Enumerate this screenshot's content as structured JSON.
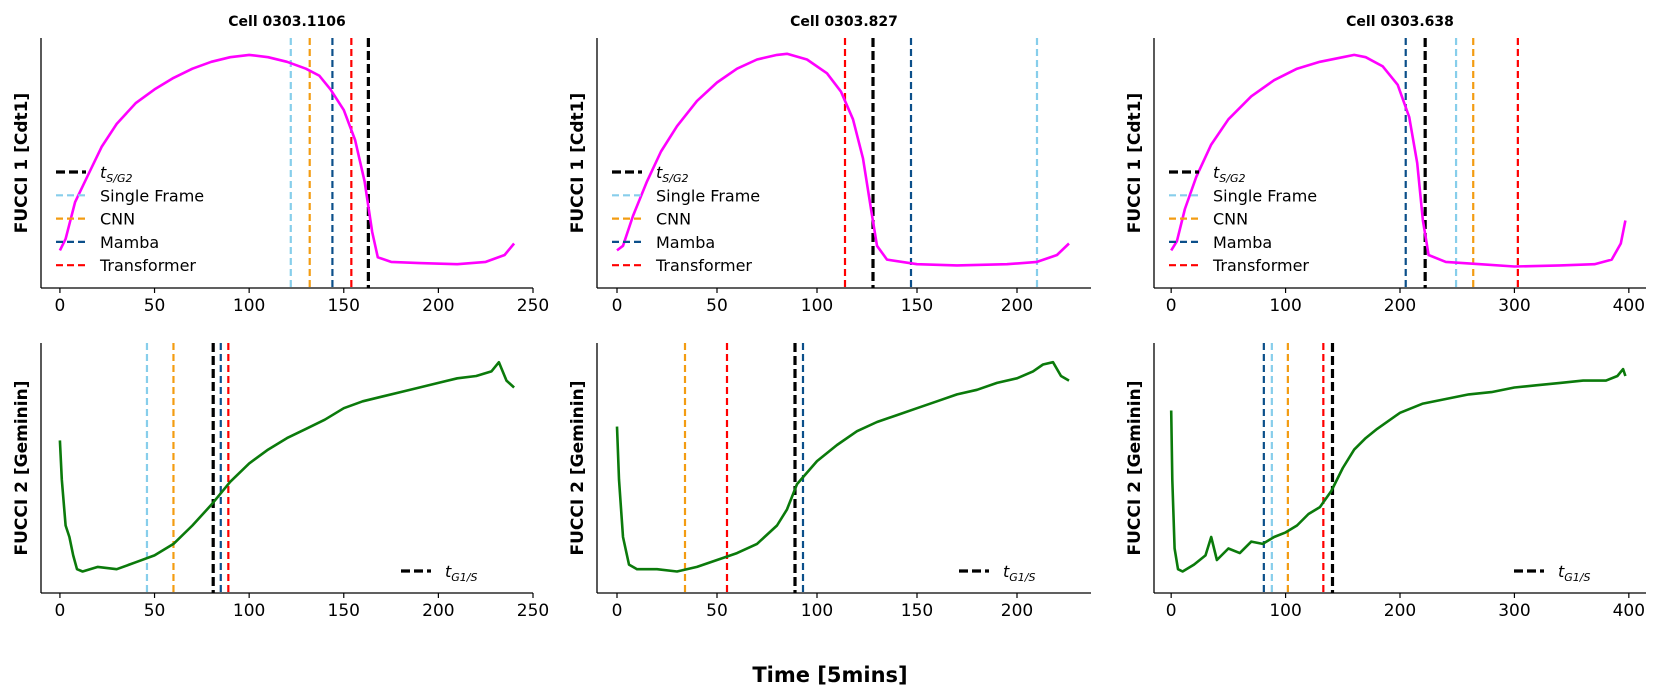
{
  "figure": {
    "xlabel": "Time [5mins]",
    "colors": {
      "t_event": "#000000",
      "single_frame": "#87ceeb",
      "cnn": "#f39c12",
      "mamba": "#0b4f8a",
      "transformer": "#ff0000",
      "fucci1": "#ff00ff",
      "fucci2": "#0b7a0b"
    }
  },
  "chart_data": [
    {
      "type": "line",
      "row": 0,
      "col": 0,
      "title": "Cell 0303.1106",
      "ylabel": "FUCCI 1 [Cdt1]",
      "xlim": [
        -10,
        250
      ],
      "xticks": [
        0,
        50,
        100,
        150,
        200,
        250
      ],
      "ylim": [
        0,
        1
      ],
      "yticks_shown": false,
      "grid": false,
      "series": [
        {
          "color": "#ff00ff",
          "points": [
            [
              0,
              0.12
            ],
            [
              3,
              0.17
            ],
            [
              8,
              0.33
            ],
            [
              15,
              0.45
            ],
            [
              22,
              0.57
            ],
            [
              30,
              0.67
            ],
            [
              40,
              0.76
            ],
            [
              50,
              0.82
            ],
            [
              60,
              0.87
            ],
            [
              70,
              0.91
            ],
            [
              80,
              0.94
            ],
            [
              90,
              0.96
            ],
            [
              100,
              0.97
            ],
            [
              110,
              0.96
            ],
            [
              120,
              0.94
            ],
            [
              130,
              0.91
            ],
            [
              137,
              0.88
            ],
            [
              143,
              0.82
            ],
            [
              150,
              0.73
            ],
            [
              156,
              0.6
            ],
            [
              161,
              0.42
            ],
            [
              165,
              0.2
            ],
            [
              168,
              0.09
            ],
            [
              175,
              0.07
            ],
            [
              190,
              0.065
            ],
            [
              210,
              0.06
            ],
            [
              225,
              0.07
            ],
            [
              235,
              0.1
            ],
            [
              240,
              0.15
            ]
          ]
        }
      ],
      "vlines": [
        {
          "name": "t_event",
          "x": 163
        },
        {
          "name": "single_frame",
          "x": 122
        },
        {
          "name": "cnn",
          "x": 132
        },
        {
          "name": "mamba",
          "x": 144
        },
        {
          "name": "transformer",
          "x": 154
        }
      ],
      "legend": {
        "position": "center-left",
        "entries": [
          {
            "key": "t_event",
            "label": "t",
            "sub": "S/G2"
          },
          {
            "key": "single_frame",
            "label": "Single Frame"
          },
          {
            "key": "cnn",
            "label": "CNN"
          },
          {
            "key": "mamba",
            "label": "Mamba"
          },
          {
            "key": "transformer",
            "label": "Transformer"
          }
        ]
      }
    },
    {
      "type": "line",
      "row": 0,
      "col": 1,
      "title": "Cell 0303.827",
      "ylabel": "FUCCI 1 [Cdt1]",
      "xlim": [
        -10,
        237
      ],
      "xticks": [
        0,
        50,
        100,
        150,
        200
      ],
      "ylim": [
        0,
        1
      ],
      "yticks_shown": false,
      "grid": false,
      "series": [
        {
          "color": "#ff00ff",
          "points": [
            [
              0,
              0.12
            ],
            [
              3,
              0.14
            ],
            [
              8,
              0.27
            ],
            [
              15,
              0.42
            ],
            [
              22,
              0.55
            ],
            [
              30,
              0.66
            ],
            [
              40,
              0.77
            ],
            [
              50,
              0.85
            ],
            [
              60,
              0.91
            ],
            [
              70,
              0.95
            ],
            [
              80,
              0.97
            ],
            [
              85,
              0.975
            ],
            [
              95,
              0.95
            ],
            [
              105,
              0.89
            ],
            [
              112,
              0.81
            ],
            [
              118,
              0.69
            ],
            [
              123,
              0.52
            ],
            [
              127,
              0.3
            ],
            [
              130,
              0.14
            ],
            [
              135,
              0.08
            ],
            [
              150,
              0.06
            ],
            [
              170,
              0.055
            ],
            [
              195,
              0.06
            ],
            [
              210,
              0.07
            ],
            [
              220,
              0.1
            ],
            [
              226,
              0.15
            ]
          ]
        }
      ],
      "vlines": [
        {
          "name": "t_event",
          "x": 128
        },
        {
          "name": "single_frame",
          "x": 210
        },
        {
          "name": "mamba",
          "x": 147
        },
        {
          "name": "transformer",
          "x": 114
        }
      ],
      "legend": {
        "position": "center-left",
        "entries": [
          {
            "key": "t_event",
            "label": "t",
            "sub": "S/G2"
          },
          {
            "key": "single_frame",
            "label": "Single Frame"
          },
          {
            "key": "cnn",
            "label": "CNN"
          },
          {
            "key": "mamba",
            "label": "Mamba"
          },
          {
            "key": "transformer",
            "label": "Transformer"
          }
        ]
      }
    },
    {
      "type": "line",
      "row": 0,
      "col": 2,
      "title": "Cell 0303.638",
      "ylabel": "FUCCI 1 [Cdt1]",
      "xlim": [
        -15,
        415
      ],
      "xticks": [
        0,
        100,
        200,
        300,
        400
      ],
      "ylim": [
        0,
        1
      ],
      "yticks_shown": false,
      "grid": false,
      "series": [
        {
          "color": "#ff00ff",
          "points": [
            [
              0,
              0.12
            ],
            [
              5,
              0.16
            ],
            [
              12,
              0.3
            ],
            [
              22,
              0.44
            ],
            [
              35,
              0.58
            ],
            [
              50,
              0.69
            ],
            [
              70,
              0.79
            ],
            [
              90,
              0.86
            ],
            [
              110,
              0.91
            ],
            [
              130,
              0.94
            ],
            [
              150,
              0.96
            ],
            [
              160,
              0.97
            ],
            [
              170,
              0.96
            ],
            [
              185,
              0.92
            ],
            [
              198,
              0.84
            ],
            [
              208,
              0.7
            ],
            [
              215,
              0.5
            ],
            [
              220,
              0.25
            ],
            [
              225,
              0.1
            ],
            [
              240,
              0.07
            ],
            [
              270,
              0.06
            ],
            [
              300,
              0.05
            ],
            [
              340,
              0.055
            ],
            [
              370,
              0.06
            ],
            [
              385,
              0.08
            ],
            [
              393,
              0.15
            ],
            [
              397,
              0.25
            ]
          ]
        }
      ],
      "vlines": [
        {
          "name": "t_event",
          "x": 222
        },
        {
          "name": "single_frame",
          "x": 249
        },
        {
          "name": "cnn",
          "x": 264
        },
        {
          "name": "mamba",
          "x": 205
        },
        {
          "name": "transformer",
          "x": 303
        }
      ],
      "legend": {
        "position": "center-left",
        "entries": [
          {
            "key": "t_event",
            "label": "t",
            "sub": "S/G2"
          },
          {
            "key": "single_frame",
            "label": "Single Frame"
          },
          {
            "key": "cnn",
            "label": "CNN"
          },
          {
            "key": "mamba",
            "label": "Mamba"
          },
          {
            "key": "transformer",
            "label": "Transformer"
          }
        ]
      }
    },
    {
      "type": "line",
      "row": 1,
      "col": 0,
      "ylabel": "FUCCI 2 [Geminin]",
      "xlim": [
        -10,
        250
      ],
      "xticks": [
        0,
        50,
        100,
        150,
        200,
        250
      ],
      "ylim": [
        0,
        1
      ],
      "yticks_shown": false,
      "grid": false,
      "series": [
        {
          "color": "#0b7a0b",
          "points": [
            [
              0,
              0.62
            ],
            [
              1,
              0.45
            ],
            [
              3,
              0.25
            ],
            [
              5,
              0.2
            ],
            [
              7,
              0.12
            ],
            [
              9,
              0.06
            ],
            [
              12,
              0.05
            ],
            [
              20,
              0.07
            ],
            [
              30,
              0.06
            ],
            [
              40,
              0.09
            ],
            [
              50,
              0.12
            ],
            [
              60,
              0.17
            ],
            [
              70,
              0.25
            ],
            [
              80,
              0.34
            ],
            [
              90,
              0.44
            ],
            [
              100,
              0.52
            ],
            [
              110,
              0.58
            ],
            [
              120,
              0.63
            ],
            [
              130,
              0.67
            ],
            [
              140,
              0.71
            ],
            [
              150,
              0.76
            ],
            [
              160,
              0.79
            ],
            [
              170,
              0.81
            ],
            [
              180,
              0.83
            ],
            [
              190,
              0.85
            ],
            [
              200,
              0.87
            ],
            [
              210,
              0.89
            ],
            [
              220,
              0.9
            ],
            [
              228,
              0.92
            ],
            [
              232,
              0.96
            ],
            [
              236,
              0.88
            ],
            [
              240,
              0.85
            ]
          ]
        }
      ],
      "vlines": [
        {
          "name": "t_event",
          "x": 81
        },
        {
          "name": "single_frame",
          "x": 46
        },
        {
          "name": "cnn",
          "x": 60
        },
        {
          "name": "mamba",
          "x": 85
        },
        {
          "name": "transformer",
          "x": 89
        }
      ],
      "legend": {
        "position": "bottom-right",
        "entries": [
          {
            "key": "t_event",
            "label": "t",
            "sub": "G1/S"
          }
        ]
      }
    },
    {
      "type": "line",
      "row": 1,
      "col": 1,
      "ylabel": "FUCCI 2 [Geminin]",
      "xlim": [
        -10,
        237
      ],
      "xticks": [
        0,
        50,
        100,
        150,
        200
      ],
      "ylim": [
        0,
        1
      ],
      "yticks_shown": false,
      "grid": false,
      "series": [
        {
          "color": "#0b7a0b",
          "points": [
            [
              0,
              0.68
            ],
            [
              1,
              0.45
            ],
            [
              3,
              0.2
            ],
            [
              6,
              0.08
            ],
            [
              10,
              0.06
            ],
            [
              20,
              0.06
            ],
            [
              30,
              0.05
            ],
            [
              40,
              0.07
            ],
            [
              50,
              0.1
            ],
            [
              60,
              0.13
            ],
            [
              70,
              0.17
            ],
            [
              80,
              0.25
            ],
            [
              85,
              0.32
            ],
            [
              90,
              0.43
            ],
            [
              95,
              0.48
            ],
            [
              100,
              0.53
            ],
            [
              110,
              0.6
            ],
            [
              120,
              0.66
            ],
            [
              130,
              0.7
            ],
            [
              140,
              0.73
            ],
            [
              150,
              0.76
            ],
            [
              160,
              0.79
            ],
            [
              170,
              0.82
            ],
            [
              180,
              0.84
            ],
            [
              190,
              0.87
            ],
            [
              200,
              0.89
            ],
            [
              208,
              0.92
            ],
            [
              213,
              0.95
            ],
            [
              218,
              0.96
            ],
            [
              222,
              0.9
            ],
            [
              226,
              0.88
            ]
          ]
        }
      ],
      "vlines": [
        {
          "name": "t_event",
          "x": 89
        },
        {
          "name": "cnn",
          "x": 34
        },
        {
          "name": "mamba",
          "x": 93
        },
        {
          "name": "transformer",
          "x": 55
        }
      ],
      "legend": {
        "position": "bottom-right",
        "entries": [
          {
            "key": "t_event",
            "label": "t",
            "sub": "G1/S"
          }
        ]
      }
    },
    {
      "type": "line",
      "row": 1,
      "col": 2,
      "ylabel": "FUCCI 2 [Geminin]",
      "xlim": [
        -15,
        415
      ],
      "xticks": [
        0,
        100,
        200,
        300,
        400
      ],
      "ylim": [
        0,
        1
      ],
      "yticks_shown": false,
      "grid": false,
      "series": [
        {
          "color": "#0b7a0b",
          "points": [
            [
              0,
              0.75
            ],
            [
              1,
              0.45
            ],
            [
              3,
              0.15
            ],
            [
              6,
              0.06
            ],
            [
              10,
              0.05
            ],
            [
              20,
              0.08
            ],
            [
              30,
              0.12
            ],
            [
              35,
              0.2
            ],
            [
              40,
              0.1
            ],
            [
              50,
              0.15
            ],
            [
              60,
              0.13
            ],
            [
              70,
              0.18
            ],
            [
              80,
              0.17
            ],
            [
              90,
              0.2
            ],
            [
              100,
              0.22
            ],
            [
              110,
              0.25
            ],
            [
              120,
              0.3
            ],
            [
              130,
              0.33
            ],
            [
              140,
              0.4
            ],
            [
              150,
              0.5
            ],
            [
              160,
              0.58
            ],
            [
              170,
              0.63
            ],
            [
              180,
              0.67
            ],
            [
              200,
              0.74
            ],
            [
              220,
              0.78
            ],
            [
              240,
              0.8
            ],
            [
              260,
              0.82
            ],
            [
              280,
              0.83
            ],
            [
              300,
              0.85
            ],
            [
              320,
              0.86
            ],
            [
              340,
              0.87
            ],
            [
              360,
              0.88
            ],
            [
              380,
              0.88
            ],
            [
              390,
              0.9
            ],
            [
              395,
              0.93
            ],
            [
              397,
              0.9
            ]
          ]
        }
      ],
      "vlines": [
        {
          "name": "t_event",
          "x": 141
        },
        {
          "name": "single_frame",
          "x": 88
        },
        {
          "name": "cnn",
          "x": 102
        },
        {
          "name": "mamba",
          "x": 81
        },
        {
          "name": "transformer",
          "x": 133
        }
      ],
      "legend": {
        "position": "bottom-right",
        "entries": [
          {
            "key": "t_event",
            "label": "t",
            "sub": "G1/S"
          }
        ]
      }
    }
  ]
}
